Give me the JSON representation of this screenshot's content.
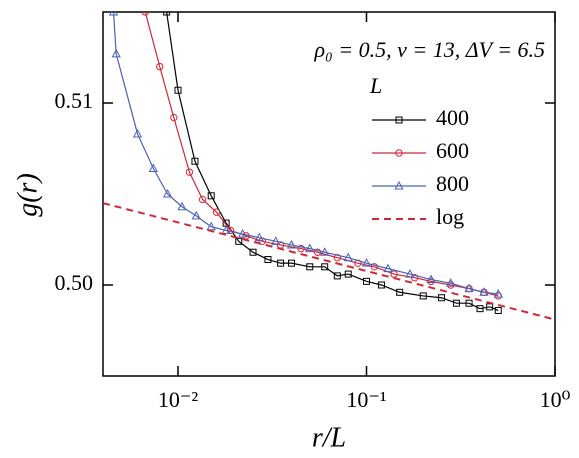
{
  "chart_data": {
    "type": "line",
    "annotation": "ρ₀ = 0.5,  v = 13,  ΔV = 6.5",
    "xlabel": "r/L",
    "ylabel": "g(r)",
    "legend_title": "L",
    "legend": "upper right",
    "xscale": "log",
    "xlim": [
      0.004,
      1
    ],
    "ylim": [
      0.495,
      0.515
    ],
    "xticks": [
      {
        "value": 0.01,
        "label": "10⁻²"
      },
      {
        "value": 0.1,
        "label": "10⁻¹"
      },
      {
        "value": 1,
        "label": "10⁰"
      }
    ],
    "yticks": [
      {
        "value": 0.5,
        "label": "0.50"
      },
      0.51
    ],
    "series": [
      {
        "name": "400",
        "color": "#000000",
        "marker": "square",
        "x": [
          0.0087,
          0.01,
          0.0123,
          0.015,
          0.018,
          0.021,
          0.025,
          0.03,
          0.035,
          0.04,
          0.05,
          0.06,
          0.07,
          0.08,
          0.1,
          0.12,
          0.15,
          0.2,
          0.25,
          0.3,
          0.35,
          0.4,
          0.45,
          0.5
        ],
        "values": [
          0.515,
          0.5107,
          0.5068,
          0.5049,
          0.5034,
          0.5024,
          0.5018,
          0.5014,
          0.5012,
          0.5012,
          0.501,
          0.501,
          0.5005,
          0.5006,
          0.5002,
          0.5,
          0.4996,
          0.4994,
          0.4993,
          0.499,
          0.499,
          0.4987,
          0.4988,
          0.4986
        ]
      },
      {
        "name": "600",
        "color": "#d0283a",
        "marker": "circle",
        "x": [
          0.0067,
          0.008,
          0.0095,
          0.0115,
          0.0135,
          0.016,
          0.019,
          0.023,
          0.028,
          0.035,
          0.045,
          0.055,
          0.07,
          0.09,
          0.11,
          0.14,
          0.18,
          0.22,
          0.28,
          0.35,
          0.42,
          0.5
        ],
        "values": [
          0.515,
          0.512,
          0.5092,
          0.5062,
          0.5047,
          0.504,
          0.503,
          0.5027,
          0.5024,
          0.5022,
          0.502,
          0.5018,
          0.5015,
          0.5012,
          0.501,
          0.5006,
          0.5004,
          0.5002,
          0.5,
          0.4998,
          0.4996,
          0.4994
        ]
      },
      {
        "name": "800",
        "color": "#4a62b4",
        "marker": "triangle",
        "x": [
          0.00455,
          0.0047,
          0.0061,
          0.0074,
          0.0088,
          0.0105,
          0.0125,
          0.015,
          0.018,
          0.022,
          0.027,
          0.033,
          0.04,
          0.05,
          0.06,
          0.08,
          0.1,
          0.13,
          0.17,
          0.22,
          0.28,
          0.35,
          0.42,
          0.5
        ],
        "values": [
          0.515,
          0.5127,
          0.5083,
          0.5064,
          0.505,
          0.5043,
          0.5038,
          0.5032,
          0.503,
          0.5028,
          0.5026,
          0.5024,
          0.5022,
          0.502,
          0.5018,
          0.5015,
          0.5012,
          0.5009,
          0.5006,
          0.5003,
          0.5001,
          0.4998,
          0.4996,
          0.4995
        ]
      },
      {
        "name": "log",
        "color": "#d0283a",
        "dashed": true,
        "x": [
          0.004,
          1
        ],
        "values": [
          0.5045,
          0.4981
        ]
      }
    ]
  }
}
